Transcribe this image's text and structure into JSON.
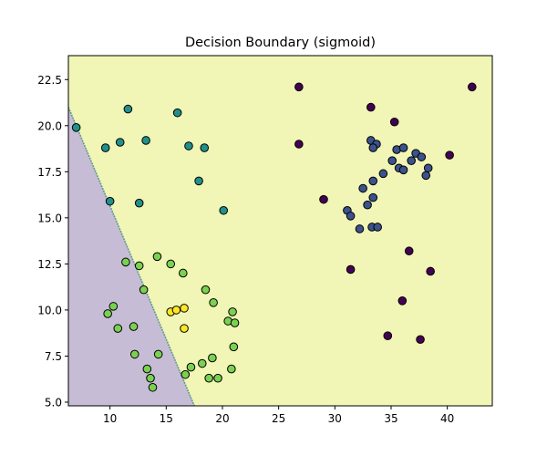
{
  "chart_data": {
    "type": "scatter",
    "title": "Decision Boundary (sigmoid)",
    "xlabel": "",
    "ylabel": "",
    "xlim": [
      6.3,
      44.0
    ],
    "ylim": [
      4.8,
      23.8
    ],
    "x_ticks": [
      10,
      15,
      20,
      25,
      30,
      35,
      40
    ],
    "x_tick_labels": [
      "10",
      "15",
      "20",
      "25",
      "30",
      "35",
      "40"
    ],
    "y_ticks": [
      5.0,
      7.5,
      10.0,
      12.5,
      15.0,
      17.5,
      20.0,
      22.5
    ],
    "y_tick_labels": [
      "5.0",
      "7.5",
      "10.0",
      "12.5",
      "15.0",
      "17.5",
      "20.0",
      "22.5"
    ],
    "grid": false,
    "regions": [
      {
        "name": "class-0-region",
        "color": "#c7bcd6",
        "boundary": [
          [
            6.3,
            21.0
          ],
          [
            17.5,
            4.8
          ]
        ]
      },
      {
        "name": "class-1-region",
        "color": "#f1f5b5"
      }
    ],
    "boundary_color": "#5e9b8f",
    "series": [
      {
        "color": "#440154",
        "points": [
          [
            26.8,
            22.1
          ],
          [
            42.2,
            22.1
          ],
          [
            33.2,
            21.0
          ],
          [
            35.3,
            20.2
          ],
          [
            26.8,
            19.0
          ],
          [
            29.0,
            16.0
          ],
          [
            40.2,
            18.4
          ],
          [
            31.4,
            12.2
          ],
          [
            36.6,
            13.2
          ],
          [
            38.5,
            12.1
          ],
          [
            36.0,
            10.5
          ],
          [
            34.7,
            8.6
          ],
          [
            37.6,
            8.4
          ]
        ]
      },
      {
        "color": "#3b528b",
        "points": [
          [
            33.2,
            19.2
          ],
          [
            33.7,
            19.0
          ],
          [
            33.4,
            18.8
          ],
          [
            35.5,
            18.7
          ],
          [
            36.1,
            18.8
          ],
          [
            37.2,
            18.5
          ],
          [
            37.7,
            18.3
          ],
          [
            36.8,
            18.1
          ],
          [
            35.1,
            18.1
          ],
          [
            35.7,
            17.7
          ],
          [
            36.1,
            17.6
          ],
          [
            38.3,
            17.7
          ],
          [
            34.3,
            17.4
          ],
          [
            38.1,
            17.3
          ],
          [
            33.4,
            17.0
          ],
          [
            32.5,
            16.6
          ],
          [
            33.4,
            16.1
          ],
          [
            32.9,
            15.7
          ],
          [
            31.1,
            15.4
          ],
          [
            31.4,
            15.1
          ],
          [
            33.3,
            14.5
          ],
          [
            33.8,
            14.5
          ],
          [
            32.2,
            14.4
          ]
        ]
      },
      {
        "color": "#21908d",
        "points": [
          [
            7.0,
            19.9
          ],
          [
            11.6,
            20.9
          ],
          [
            16.0,
            20.7
          ],
          [
            9.6,
            18.8
          ],
          [
            10.9,
            19.1
          ],
          [
            13.2,
            19.2
          ],
          [
            17.0,
            18.9
          ],
          [
            18.4,
            18.8
          ],
          [
            17.9,
            17.0
          ],
          [
            10.0,
            15.9
          ],
          [
            12.6,
            15.8
          ],
          [
            20.1,
            15.4
          ]
        ]
      },
      {
        "color": "#7ad151",
        "points": [
          [
            11.4,
            12.6
          ],
          [
            12.6,
            12.4
          ],
          [
            14.2,
            12.9
          ],
          [
            15.4,
            12.5
          ],
          [
            16.5,
            12.0
          ],
          [
            13.0,
            11.1
          ],
          [
            18.5,
            11.1
          ],
          [
            19.2,
            10.4
          ],
          [
            10.3,
            10.2
          ],
          [
            9.8,
            9.8
          ],
          [
            10.7,
            9.0
          ],
          [
            12.1,
            9.1
          ],
          [
            20.5,
            9.4
          ],
          [
            20.9,
            9.9
          ],
          [
            21.1,
            9.3
          ],
          [
            12.2,
            7.6
          ],
          [
            14.3,
            7.6
          ],
          [
            21.0,
            8.0
          ],
          [
            18.2,
            7.1
          ],
          [
            19.1,
            7.4
          ],
          [
            17.2,
            6.9
          ],
          [
            13.3,
            6.8
          ],
          [
            16.7,
            6.5
          ],
          [
            13.6,
            6.3
          ],
          [
            18.8,
            6.3
          ],
          [
            19.6,
            6.3
          ],
          [
            20.8,
            6.8
          ],
          [
            13.8,
            5.8
          ]
        ]
      },
      {
        "color": "#fde725",
        "points": [
          [
            15.4,
            9.9
          ],
          [
            15.9,
            10.0
          ],
          [
            16.6,
            10.1
          ],
          [
            16.6,
            9.0
          ]
        ]
      }
    ]
  }
}
